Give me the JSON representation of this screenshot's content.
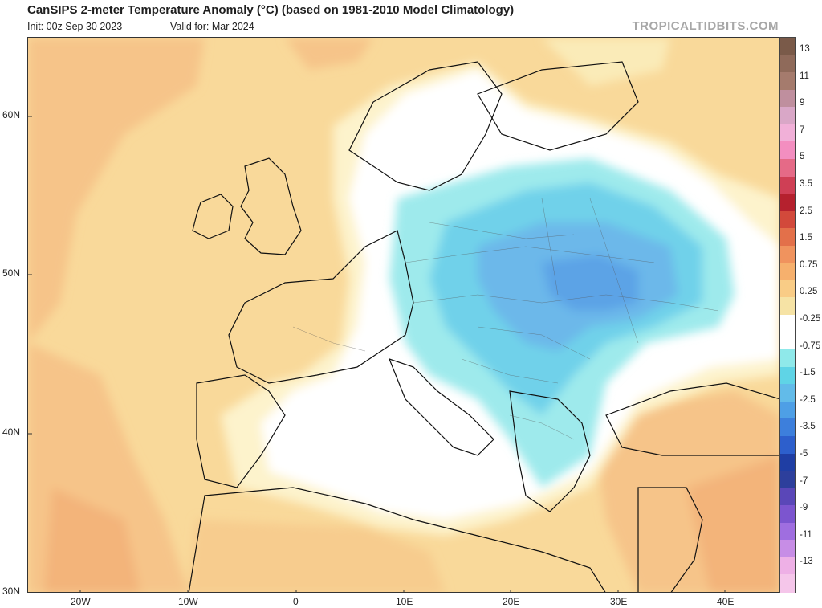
{
  "header": {
    "title": "CanSIPS 2-meter Temperature Anomaly (°C) (based on 1981-2010 Model Climatology)",
    "init": "Init: 00z Sep 30 2023",
    "valid": "Valid for: Mar 2024",
    "source": "TROPICALTIDBITS.COM"
  },
  "axes": {
    "lat_labels": [
      "60N",
      "50N",
      "40N",
      "30N"
    ],
    "lon_labels": [
      "20W",
      "10W",
      "0",
      "10E",
      "20E",
      "30E",
      "40E"
    ]
  },
  "colorbar": {
    "labels": [
      "13",
      "11",
      "9",
      "7",
      "5",
      "3.5",
      "2.5",
      "1.5",
      "0.75",
      "0.25",
      "-0.25",
      "-0.75",
      "-1.5",
      "-2.5",
      "-3.5",
      "-5",
      "-7",
      "-9",
      "-11",
      "-13"
    ],
    "colors": [
      "#7a5a49",
      "#8f6a5a",
      "#a57b6d",
      "#bf8f9e",
      "#d9a7c7",
      "#f1b0d8",
      "#f38ec0",
      "#e56a87",
      "#cf3f55",
      "#b5212e",
      "#d2493b",
      "#e3704a",
      "#f0935e",
      "#f6b06d",
      "#f9cc86",
      "#f6e3a5",
      "#ffffff",
      "#ffffff",
      "#8fe9ea",
      "#5fd4e6",
      "#62bbe9",
      "#4e9fe6",
      "#3d7fdc",
      "#2d5fcc",
      "#1f3ea4",
      "#2d3f9c",
      "#5a47b8",
      "#7c55cf",
      "#9f6ee0",
      "#c78de6",
      "#eeb0e6",
      "#f5c6ea"
    ],
    "accent_warm": "#f8cd86",
    "accent_cool": "#5fc6ec"
  }
}
